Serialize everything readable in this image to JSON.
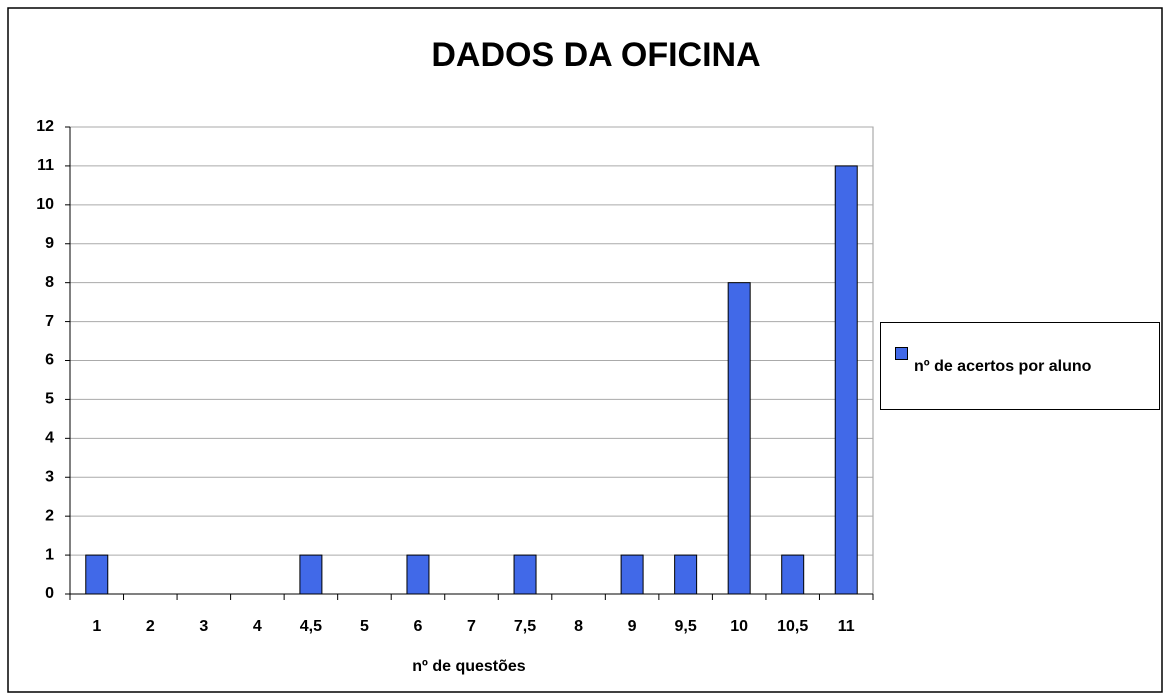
{
  "chart_data": {
    "type": "bar",
    "title": "DADOS DA OFICINA",
    "x_label": "nº de questões",
    "categories": [
      "1",
      "2",
      "3",
      "4",
      "4,5",
      "5",
      "6",
      "7",
      "7,5",
      "8",
      "9",
      "9,5",
      "10",
      "10,5",
      "11"
    ],
    "series": [
      {
        "name": "nº de acertos por aluno",
        "color": "#4169e8",
        "values": [
          1,
          0,
          0,
          0,
          1,
          0,
          1,
          0,
          1,
          0,
          1,
          1,
          8,
          1,
          11
        ]
      }
    ],
    "ylim": [
      0,
      12
    ],
    "yticks": [
      0,
      1,
      2,
      3,
      4,
      5,
      6,
      7,
      8,
      9,
      10,
      11,
      12
    ],
    "grid": true,
    "legend": "right"
  }
}
